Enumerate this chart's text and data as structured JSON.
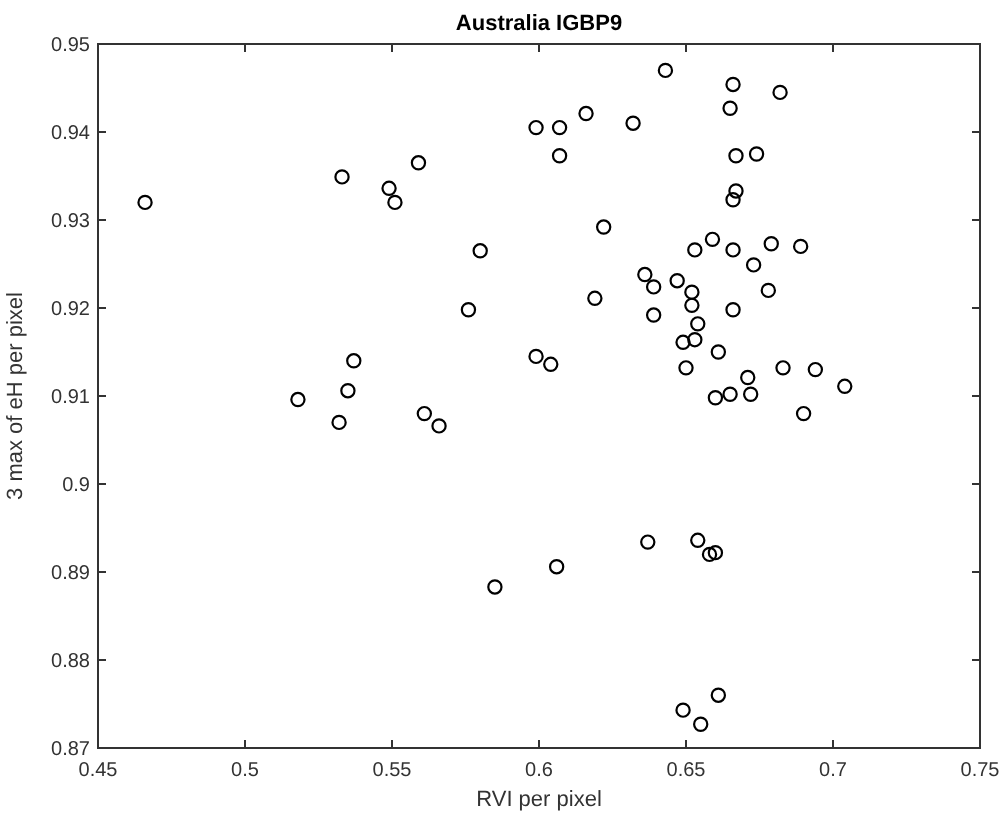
{
  "chart_data": {
    "type": "scatter",
    "title": "Australia IGBP9",
    "xlabel": "RVI per pixel",
    "ylabel": "3 max of eH per pixel",
    "xlim": [
      0.45,
      0.75
    ],
    "xticks": [
      0.45,
      0.5,
      0.55,
      0.6,
      0.65,
      0.7,
      0.75
    ],
    "ylim": [
      0.87,
      0.95
    ],
    "yticks": [
      0.87,
      0.88,
      0.89,
      0.9,
      0.91,
      0.92,
      0.93,
      0.94,
      0.95
    ],
    "grid": false,
    "marker": "circle",
    "series": [
      {
        "color": "#000000",
        "x": [
          0.466,
          0.533,
          0.549,
          0.551,
          0.559,
          0.58,
          0.576,
          0.599,
          0.607,
          0.607,
          0.537,
          0.599,
          0.604,
          0.518,
          0.535,
          0.532,
          0.561,
          0.566,
          0.585,
          0.606,
          0.643,
          0.666,
          0.682,
          0.665,
          0.616,
          0.632,
          0.667,
          0.674,
          0.667,
          0.666,
          0.622,
          0.653,
          0.659,
          0.666,
          0.679,
          0.689,
          0.673,
          0.636,
          0.639,
          0.647,
          0.652,
          0.652,
          0.678,
          0.619,
          0.639,
          0.666,
          0.654,
          0.649,
          0.653,
          0.661,
          0.65,
          0.671,
          0.683,
          0.694,
          0.704,
          0.66,
          0.665,
          0.672,
          0.69,
          0.637,
          0.654,
          0.658,
          0.66,
          0.649,
          0.661,
          0.655
        ],
        "values": [
          0.932,
          0.9349,
          0.9336,
          0.932,
          0.9365,
          0.9265,
          0.9198,
          0.9405,
          0.9405,
          0.9373,
          0.914,
          0.9145,
          0.9136,
          0.9096,
          0.9106,
          0.907,
          0.908,
          0.9066,
          0.8883,
          0.8906,
          0.947,
          0.9454,
          0.9445,
          0.9427,
          0.9421,
          0.941,
          0.9373,
          0.9375,
          0.9333,
          0.9323,
          0.9292,
          0.9266,
          0.9278,
          0.9266,
          0.9273,
          0.927,
          0.9249,
          0.9238,
          0.9224,
          0.9231,
          0.9218,
          0.9203,
          0.922,
          0.9211,
          0.9192,
          0.9198,
          0.9182,
          0.9161,
          0.9164,
          0.915,
          0.9132,
          0.9121,
          0.9132,
          0.913,
          0.9111,
          0.9098,
          0.9102,
          0.9102,
          0.908,
          0.8934,
          0.8936,
          0.892,
          0.8922,
          0.8743,
          0.876,
          0.8727
        ]
      }
    ]
  }
}
